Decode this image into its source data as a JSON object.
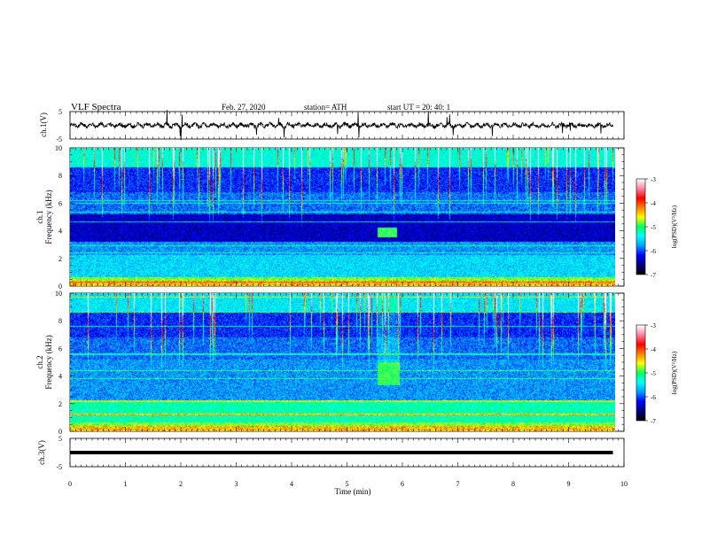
{
  "header": {
    "title": "VLF  Spectra",
    "date": "Feb. 27, 2020",
    "station": "station= ATH",
    "start_ut": "start  UT  =    20: 40: 1"
  },
  "chart_data": [
    {
      "type": "line",
      "panel": "ch1-waveform",
      "ylabel": "ch.1(V)",
      "ylim": [
        -5,
        5
      ],
      "yticks": [
        "5",
        "-5"
      ],
      "xlim": [
        0,
        10
      ],
      "baseline": 0,
      "trace_range_min": [
        9.8
      ]
    },
    {
      "type": "heatmap",
      "panel": "ch1-spectrogram",
      "channel": "ch.1",
      "ylabel": "Frequency  (kHz)",
      "ylim": [
        0,
        10
      ],
      "yticks": [
        "0",
        "2",
        "4",
        "6",
        "8",
        "10"
      ],
      "xlim": [
        0,
        10
      ],
      "colorbar": {
        "label": "log(PSD)(V²/Hz)",
        "range": [
          -7,
          -3
        ],
        "ticks": [
          "-3",
          "-4",
          "-5",
          "-6",
          "-7"
        ]
      },
      "colormap": [
        "#000000",
        "#000080",
        "#0000ff",
        "#00a0ff",
        "#00ffff",
        "#00ff60",
        "#ffff00",
        "#ff8000",
        "#ff0000",
        "#ff80a0",
        "#ffffff"
      ],
      "burst": {
        "time_min": [
          5.55,
          5.9
        ],
        "freq_khz": [
          3.5,
          4.2
        ]
      }
    },
    {
      "type": "heatmap",
      "panel": "ch2-spectrogram",
      "channel": "ch.2",
      "ylabel": "Frequency  (kHz)",
      "ylim": [
        0,
        10
      ],
      "yticks": [
        "0",
        "2",
        "4",
        "6",
        "8",
        "10"
      ],
      "xlim": [
        0,
        10
      ],
      "colorbar": {
        "label": "log(PSD)(V²/Hz)",
        "range": [
          -7,
          -3
        ],
        "ticks": [
          "-3",
          "-4",
          "-5",
          "-6",
          "-7"
        ]
      },
      "burst": {
        "time_min": [
          5.55,
          5.95
        ],
        "freq_khz": [
          3.3,
          5.0
        ]
      }
    },
    {
      "type": "line",
      "panel": "ch3-waveform",
      "ylabel": "ch.3(V)",
      "ylim": [
        -5,
        5
      ],
      "yticks": [
        "5",
        "-5"
      ],
      "xlim": [
        0,
        10
      ],
      "level": 0,
      "trace_range_min": [
        9.8
      ]
    }
  ],
  "x_axis": {
    "label": "Time  (min)",
    "ticks": [
      "0",
      "1",
      "2",
      "3",
      "4",
      "5",
      "6",
      "7",
      "8",
      "9",
      "10"
    ]
  }
}
